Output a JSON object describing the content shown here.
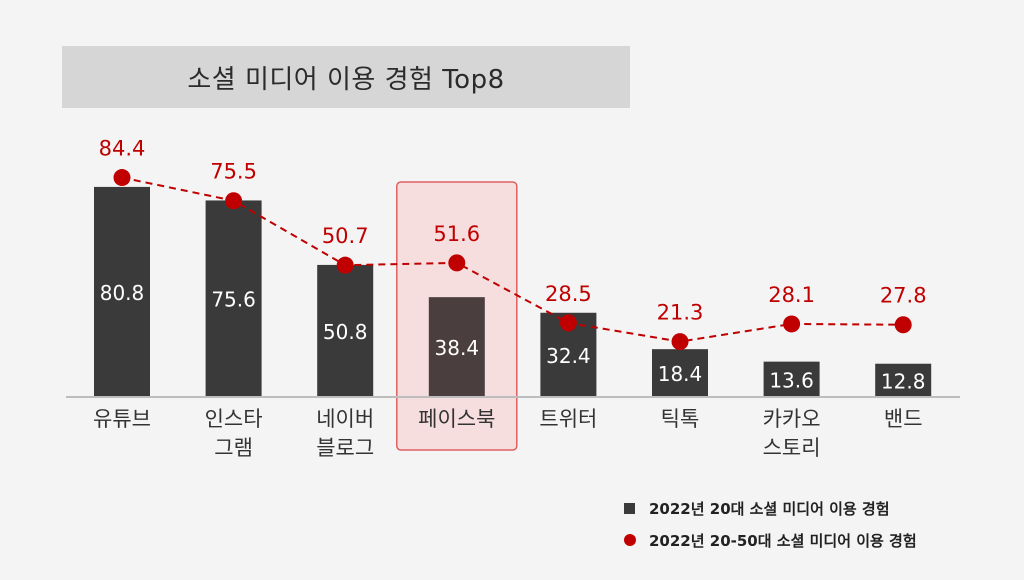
{
  "title": "소셜 미디어 이용 경험 Top8",
  "colors": {
    "bar": "#3a3a3a",
    "bar_highlight": "#4a3e3e",
    "line": "#c00000",
    "highlight_border": "#e06060",
    "highlight_fill": "#f7dede"
  },
  "chart_data": {
    "type": "bar",
    "categories": [
      [
        "유튜브"
      ],
      [
        "인스타",
        "그램"
      ],
      [
        "네이버",
        "블로그"
      ],
      [
        "페이스북"
      ],
      [
        "트위터"
      ],
      [
        "틱톡"
      ],
      [
        "카카오",
        "스토리"
      ],
      [
        "밴드"
      ]
    ],
    "highlight_index": 3,
    "series": [
      {
        "name": "2022년 20대 소셜 미디어 이용 경험",
        "type": "bar",
        "values": [
          80.8,
          75.6,
          50.8,
          38.4,
          32.4,
          18.4,
          13.6,
          12.8
        ]
      },
      {
        "name": "2022년 20-50대 소셜 미디어 이용 경험",
        "type": "line",
        "style": "dashed",
        "values": [
          84.4,
          75.5,
          50.7,
          51.6,
          28.5,
          21.3,
          28.1,
          27.8
        ]
      }
    ]
  },
  "legend": [
    {
      "label": "2022년 20대 소셜 미디어 이용 경험",
      "marker": "square"
    },
    {
      "label": "2022년 20-50대 소셜 미디어 이용 경험",
      "marker": "circle"
    }
  ]
}
